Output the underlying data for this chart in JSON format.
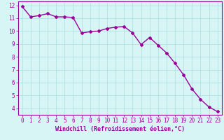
{
  "x": [
    0,
    1,
    2,
    3,
    4,
    5,
    6,
    7,
    8,
    9,
    10,
    11,
    12,
    13,
    14,
    15,
    16,
    17,
    18,
    19,
    20,
    21,
    22,
    23
  ],
  "y": [
    11.9,
    11.1,
    11.2,
    11.35,
    11.1,
    11.1,
    11.05,
    9.85,
    9.95,
    10.0,
    10.2,
    10.3,
    10.35,
    9.85,
    8.95,
    9.5,
    8.9,
    8.3,
    7.5,
    6.6,
    5.5,
    4.7,
    4.1,
    3.75
  ],
  "line_color": "#990099",
  "marker": "D",
  "markersize": 2,
  "linewidth": 1.0,
  "bg_color": "#d8f5f5",
  "grid_color": "#aadddd",
  "xlabel": "Windchill (Refroidissement éolien,°C)",
  "xlabel_color": "#990099",
  "xlabel_fontsize": 6.0,
  "yticks": [
    4,
    5,
    6,
    7,
    8,
    9,
    10,
    11,
    12
  ],
  "xticks": [
    0,
    1,
    2,
    3,
    4,
    5,
    6,
    7,
    8,
    9,
    10,
    11,
    12,
    13,
    14,
    15,
    16,
    17,
    18,
    19,
    20,
    21,
    22,
    23
  ],
  "ylim": [
    3.5,
    12.3
  ],
  "xlim": [
    -0.5,
    23.5
  ],
  "tick_fontsize": 5.5,
  "axis_color": "#990099"
}
